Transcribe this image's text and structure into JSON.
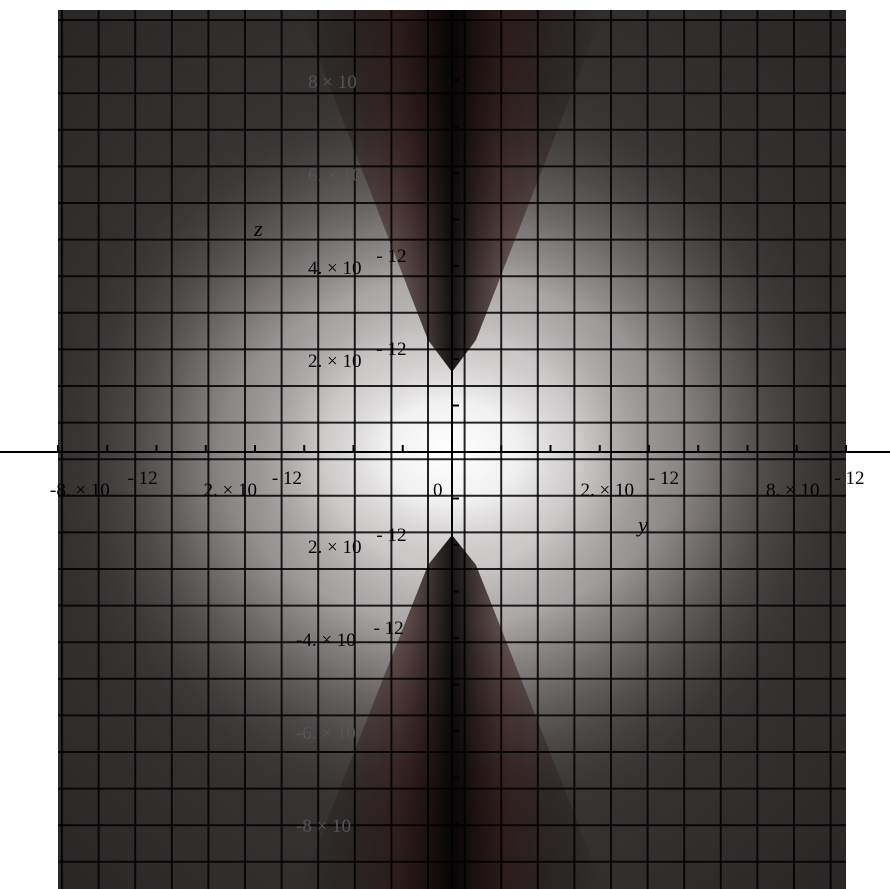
{
  "chart_data": {
    "type": "heatmap",
    "title": "",
    "colormap": "grayscale with dark red tint (black-red-white)",
    "grid": true,
    "xlabel": "y",
    "ylabel": "z",
    "xlim": [
      -8e-12,
      8e-12
    ],
    "ylim": [
      -8e-12,
      8e-12
    ],
    "x_tick_labels": [
      "-8. × 10^-12",
      "-2. × 10^-12",
      "2. × 10^-12",
      "8. × 10^-12"
    ],
    "x_ticks": [
      {
        "value": -8e-12,
        "text": "-8. × 10",
        "exp": "- 12"
      },
      {
        "value": -2e-12,
        "text": "2. × 10",
        "exp": "- 12"
      },
      {
        "value": 2e-12,
        "text": "2. × 10",
        "exp": "- 12"
      },
      {
        "value": 8e-12,
        "text": "8. × 10",
        "exp": "- 12"
      }
    ],
    "origin_label": "0",
    "y_tick_labels": [
      "8 × 10",
      "6. × 10",
      "4. × 10^-12",
      "2. × 10^-12",
      "2. × 10^-12",
      "-4. × 10^-12",
      "-6. × 10",
      "-8 × 10"
    ],
    "y_ticks": [
      {
        "value": 8e-12,
        "text": "8 × 10",
        "exp": ""
      },
      {
        "value": 6e-12,
        "text": "6. × 10",
        "exp": ""
      },
      {
        "value": 4e-12,
        "text": "4. × 10",
        "exp": "- 12"
      },
      {
        "value": 2e-12,
        "text": "2. × 10",
        "exp": "- 12"
      },
      {
        "value": -2e-12,
        "text": "2. × 10",
        "exp": "- 12"
      },
      {
        "value": -4e-12,
        "text": "-4. × 10",
        "exp": "- 12"
      },
      {
        "value": -6e-12,
        "text": "-6. × 10",
        "exp": ""
      },
      {
        "value": -8e-12,
        "text": "-8 × 10",
        "exp": ""
      }
    ],
    "intensity_pattern": {
      "description": "bright lobes along the y axis, dark node band along the z axis",
      "peak_intensity": 1.0,
      "min_intensity": 0.0
    }
  }
}
